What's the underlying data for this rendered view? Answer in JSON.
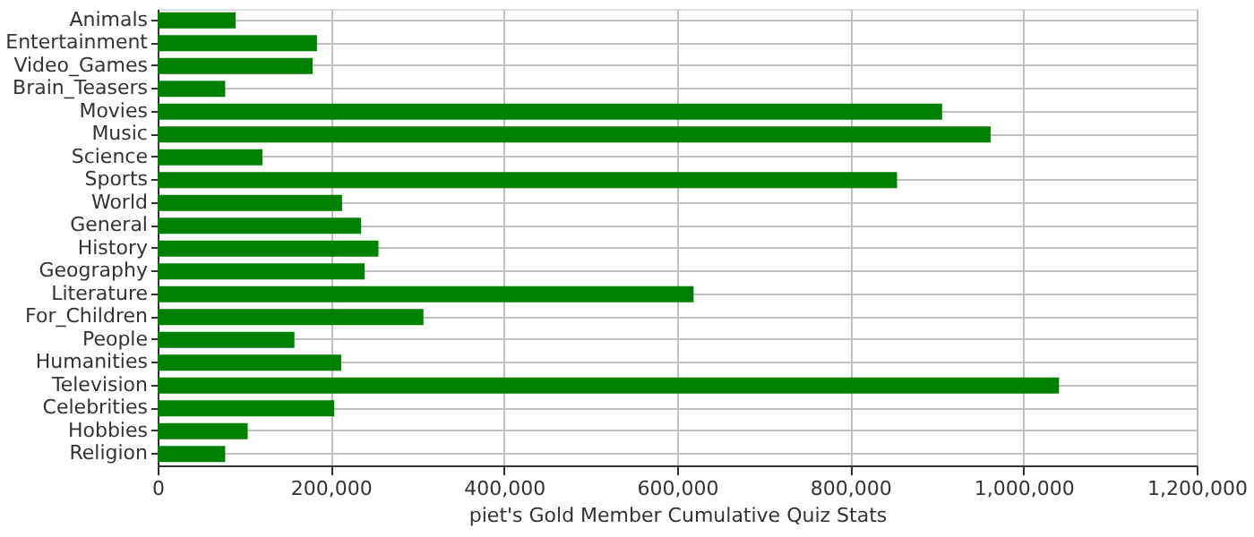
{
  "chart_data": {
    "type": "bar",
    "orientation": "horizontal",
    "xlabel": "piet's Gold Member Cumulative Quiz Stats",
    "categories": [
      "Animals",
      "Entertainment",
      "Video_Games",
      "Brain_Teasers",
      "Movies",
      "Music",
      "Science",
      "Sports",
      "World",
      "General",
      "History",
      "Geography",
      "Literature",
      "For_Children",
      "People",
      "Humanities",
      "Television",
      "Celebrities",
      "Hobbies",
      "Religion"
    ],
    "values": [
      90000,
      184000,
      179000,
      78000,
      906000,
      962000,
      121000,
      854000,
      213000,
      235000,
      255000,
      239000,
      619000,
      307000,
      158000,
      212000,
      1041000,
      204000,
      104000,
      78000
    ],
    "color": "#008000",
    "xlim": [
      0,
      1200000
    ],
    "xticks": [
      0,
      {
        "value": 200000,
        "label": "200,000"
      },
      {
        "value": 400000,
        "label": "400,000"
      },
      {
        "value": 600000,
        "label": "600,000"
      },
      {
        "value": 800000,
        "label": "800,000"
      },
      {
        "value": 1000000,
        "label": "1,000,000"
      },
      {
        "value": 1200000,
        "label": "1,200,000"
      }
    ],
    "grid": true
  }
}
